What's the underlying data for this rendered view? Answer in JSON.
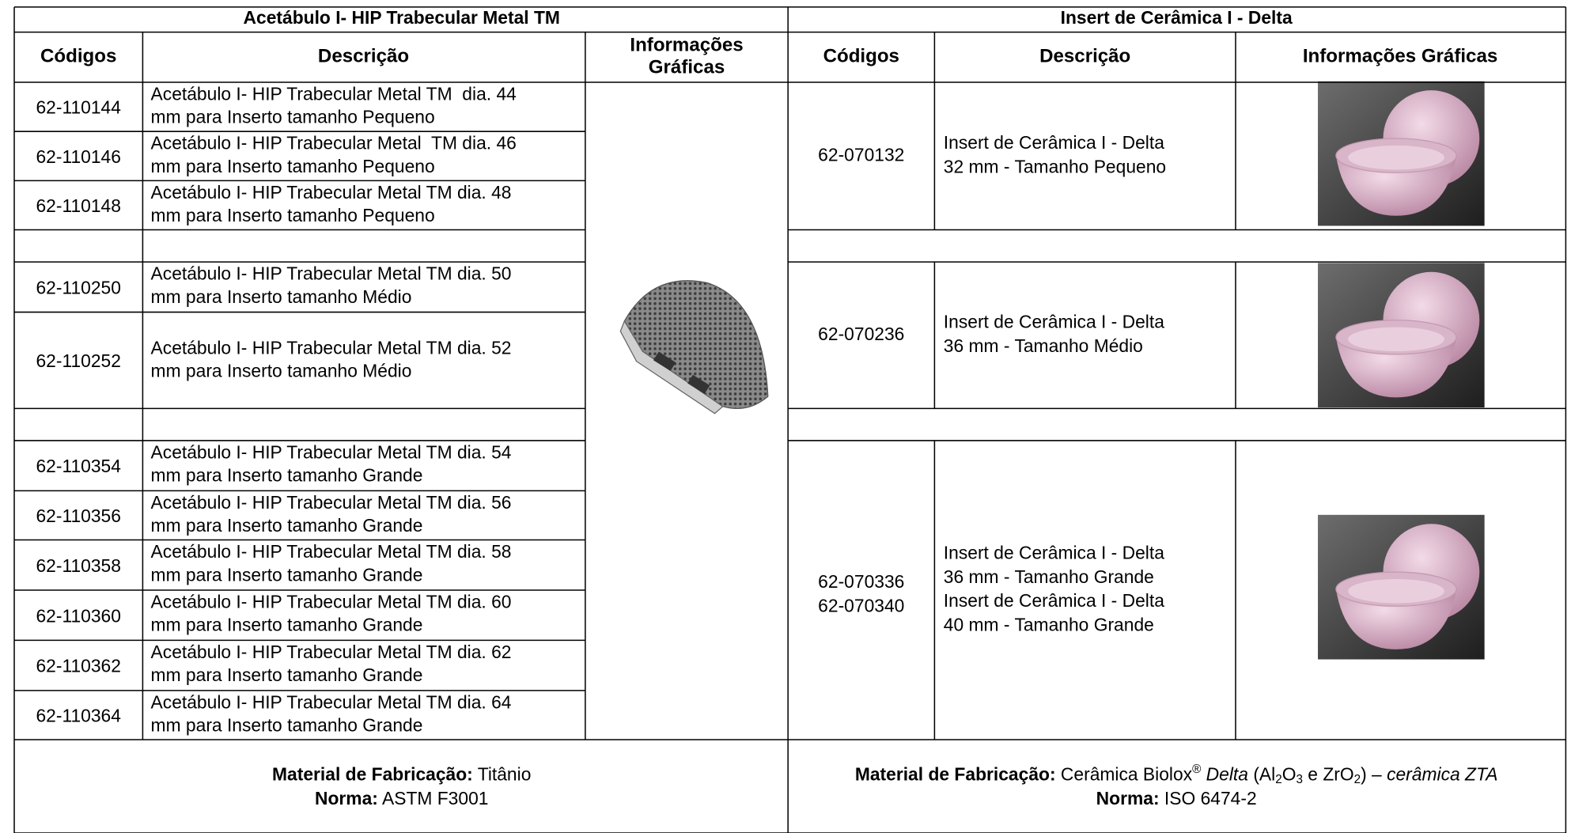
{
  "left_table": {
    "title": "Acetábulo I- HIP Trabecular Metal TM",
    "headers": [
      "Códigos",
      "Descrição"
    ],
    "info_header": [
      "Informações",
      "Gráficas"
    ],
    "rows": [
      {
        "code": "62-110144",
        "description": [
          "Acetábulo I- HIP Trabecular Metal TM  dia. 44",
          "mm para Inserto tamanho Pequeno"
        ]
      },
      {
        "code": "62-110146",
        "description": [
          "Acetábulo I- HIP Trabecular Metal  TM dia. 46",
          "mm para Inserto tamanho Pequeno"
        ]
      },
      {
        "code": "62-110148",
        "description": [
          "Acetábulo I- HIP Trabecular Metal TM dia. 48",
          "mm para Inserto tamanho Pequeno"
        ]
      },
      {
        "code": "62-110250",
        "description": [
          "Acetábulo I- HIP Trabecular Metal TM dia. 50",
          "mm para Inserto tamanho Médio"
        ]
      },
      {
        "code": "62-110252",
        "description": [
          "Acetábulo I- HIP Trabecular Metal TM dia. 52",
          "mm para Inserto tamanho Médio"
        ]
      },
      {
        "code": "62-110354",
        "description": [
          "Acetábulo I- HIP Trabecular Metal TM dia. 54",
          "mm para Inserto tamanho Grande"
        ]
      },
      {
        "code": "62-110356",
        "description": [
          "Acetábulo I- HIP Trabecular Metal TM dia. 56",
          "mm para Inserto tamanho Grande"
        ]
      },
      {
        "code": "62-110358",
        "description": [
          "Acetábulo I- HIP Trabecular Metal TM dia. 58",
          "mm para Inserto tamanho Grande"
        ]
      },
      {
        "code": "62-110360",
        "description": [
          "Acetábulo I- HIP Trabecular Metal TM dia. 60",
          "mm para Inserto tamanho Grande"
        ]
      },
      {
        "code": "62-110362",
        "description": [
          "Acetábulo I- HIP Trabecular Metal TM dia. 62",
          "mm para Inserto tamanho Grande"
        ]
      },
      {
        "code": "62-110364",
        "description": [
          "Acetábulo I- HIP Trabecular Metal TM dia. 64",
          "mm para Inserto tamanho Grande"
        ]
      }
    ],
    "material_label": "Material de Fabricação:",
    "material_value": " Titânio",
    "norm_label": "Norma:",
    "norm_value": " ASTM F3001"
  },
  "right_table": {
    "title": "Insert de Cerâmica I - Delta",
    "headers": [
      "Códigos",
      "Descrição",
      "Informações Gráficas"
    ],
    "rows": [
      {
        "codes": [
          "62-070132"
        ],
        "description": [
          "Insert de Cerâmica I - Delta",
          "32 mm - Tamanho Pequeno"
        ]
      },
      {
        "codes": [
          "62-070236"
        ],
        "description": [
          "Insert de Cerâmica I - Delta",
          "36 mm - Tamanho Médio"
        ]
      },
      {
        "codes": [
          "62-070336",
          "62-070340"
        ],
        "description": [
          "Insert de Cerâmica I - Delta",
          "36 mm - Tamanho Grande",
          "Insert de Cerâmica I - Delta",
          "40 mm - Tamanho Grande"
        ]
      }
    ],
    "material_label": "Material de Fabricação:",
    "material_parts": [
      {
        "text": " Cerâmica Biolox",
        "style": "normal"
      },
      {
        "text": "®",
        "style": "sup"
      },
      {
        "text": " Delta",
        "style": "italic"
      },
      {
        "text": " (Al",
        "style": "normal"
      },
      {
        "text": "2",
        "style": "sub"
      },
      {
        "text": "O",
        "style": "normal"
      },
      {
        "text": "3",
        "style": "sub"
      },
      {
        "text": " e ZrO",
        "style": "normal"
      },
      {
        "text": "2",
        "style": "sub"
      },
      {
        "text": ") – ",
        "style": "normal"
      },
      {
        "text": "cerâmica ZTA",
        "style": "italic"
      }
    ],
    "norm_label": "Norma:",
    "norm_value": " ISO 6474-2"
  }
}
